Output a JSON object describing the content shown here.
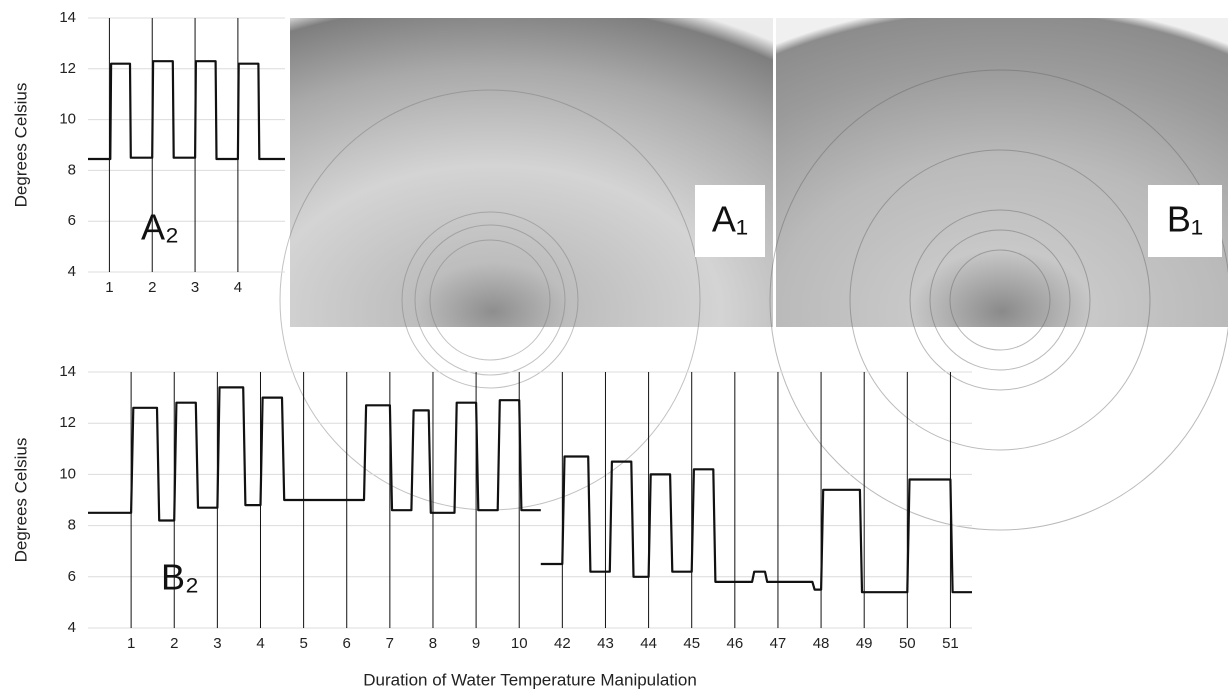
{
  "chart_data": [
    {
      "type": "line",
      "ylabel": "Degrees Celsius",
      "annotation": "A₂",
      "xlim": [
        0.5,
        5.1
      ],
      "xticks": [
        1,
        2,
        3,
        4
      ],
      "ylim": [
        4,
        14
      ],
      "yticks": [
        4,
        6,
        8,
        10,
        12,
        14
      ],
      "grid": true,
      "series": [
        {
          "color": "#111111",
          "x": [
            0.5,
            1.02,
            1.04,
            1.48,
            1.5,
            2.0,
            2.02,
            2.48,
            2.5,
            3.0,
            3.02,
            3.48,
            3.5,
            4.0,
            4.02,
            4.48,
            4.5,
            5.1
          ],
          "values": [
            8.45,
            8.45,
            12.2,
            12.2,
            8.5,
            8.5,
            12.3,
            12.3,
            8.5,
            8.5,
            12.3,
            12.3,
            8.45,
            8.45,
            12.2,
            12.2,
            8.45,
            8.45
          ]
        }
      ]
    },
    {
      "type": "line",
      "ylabel": "Degrees Celsius",
      "xlabel": "Duration of Water Temperature Manipulation",
      "annotation": "B₂",
      "xlim": [
        0,
        51.5
      ],
      "x_break": [
        10.5,
        41.5
      ],
      "xticks": [
        1,
        2,
        3,
        4,
        5,
        6,
        7,
        8,
        9,
        10,
        42,
        43,
        44,
        45,
        46,
        47,
        48,
        49,
        50,
        51
      ],
      "ylim": [
        4,
        14
      ],
      "yticks": [
        4,
        6,
        8,
        10,
        12,
        14
      ],
      "grid": true,
      "series": [
        {
          "color": "#111111",
          "x": [
            0,
            1.0,
            1.05,
            1.6,
            1.65,
            2.0,
            2.05,
            2.5,
            2.55,
            3.0,
            3.05,
            3.6,
            3.65,
            4.0,
            4.05,
            4.5,
            4.55,
            6.4,
            6.45,
            7.0,
            7.05,
            7.5,
            7.55,
            7.9,
            7.95,
            8.5,
            8.55,
            9.0,
            9.05,
            9.5,
            9.55,
            10.0,
            10.05,
            10.5
          ],
          "values": [
            8.5,
            8.5,
            12.6,
            12.6,
            8.2,
            8.2,
            12.8,
            12.8,
            8.7,
            8.7,
            13.4,
            13.4,
            8.8,
            8.8,
            13.0,
            13.0,
            9.0,
            9.0,
            12.7,
            12.7,
            8.6,
            8.6,
            12.5,
            12.5,
            8.5,
            8.5,
            12.8,
            12.8,
            8.6,
            8.6,
            12.9,
            12.9,
            8.6,
            8.6
          ]
        },
        {
          "color": "#111111",
          "x": [
            41.5,
            42.0,
            42.05,
            42.6,
            42.65,
            43.1,
            43.15,
            43.6,
            43.65,
            44.0,
            44.05,
            44.5,
            44.55,
            45.0,
            45.05,
            45.5,
            45.55,
            46.4,
            46.45,
            46.7,
            46.75,
            47.8,
            47.85,
            48.0,
            48.05,
            48.9,
            48.95,
            50.0,
            50.05,
            51.0,
            51.05,
            51.5
          ],
          "values": [
            6.5,
            6.5,
            10.7,
            10.7,
            6.2,
            6.2,
            10.5,
            10.5,
            6.0,
            6.0,
            10.0,
            10.0,
            6.2,
            6.2,
            10.2,
            10.2,
            5.8,
            5.8,
            6.2,
            6.2,
            5.8,
            5.8,
            5.5,
            5.5,
            9.4,
            9.4,
            5.4,
            5.4,
            9.8,
            9.8,
            5.4,
            5.4
          ]
        }
      ]
    }
  ],
  "images": [
    {
      "label": "A₁"
    },
    {
      "label": "B₁"
    }
  ]
}
